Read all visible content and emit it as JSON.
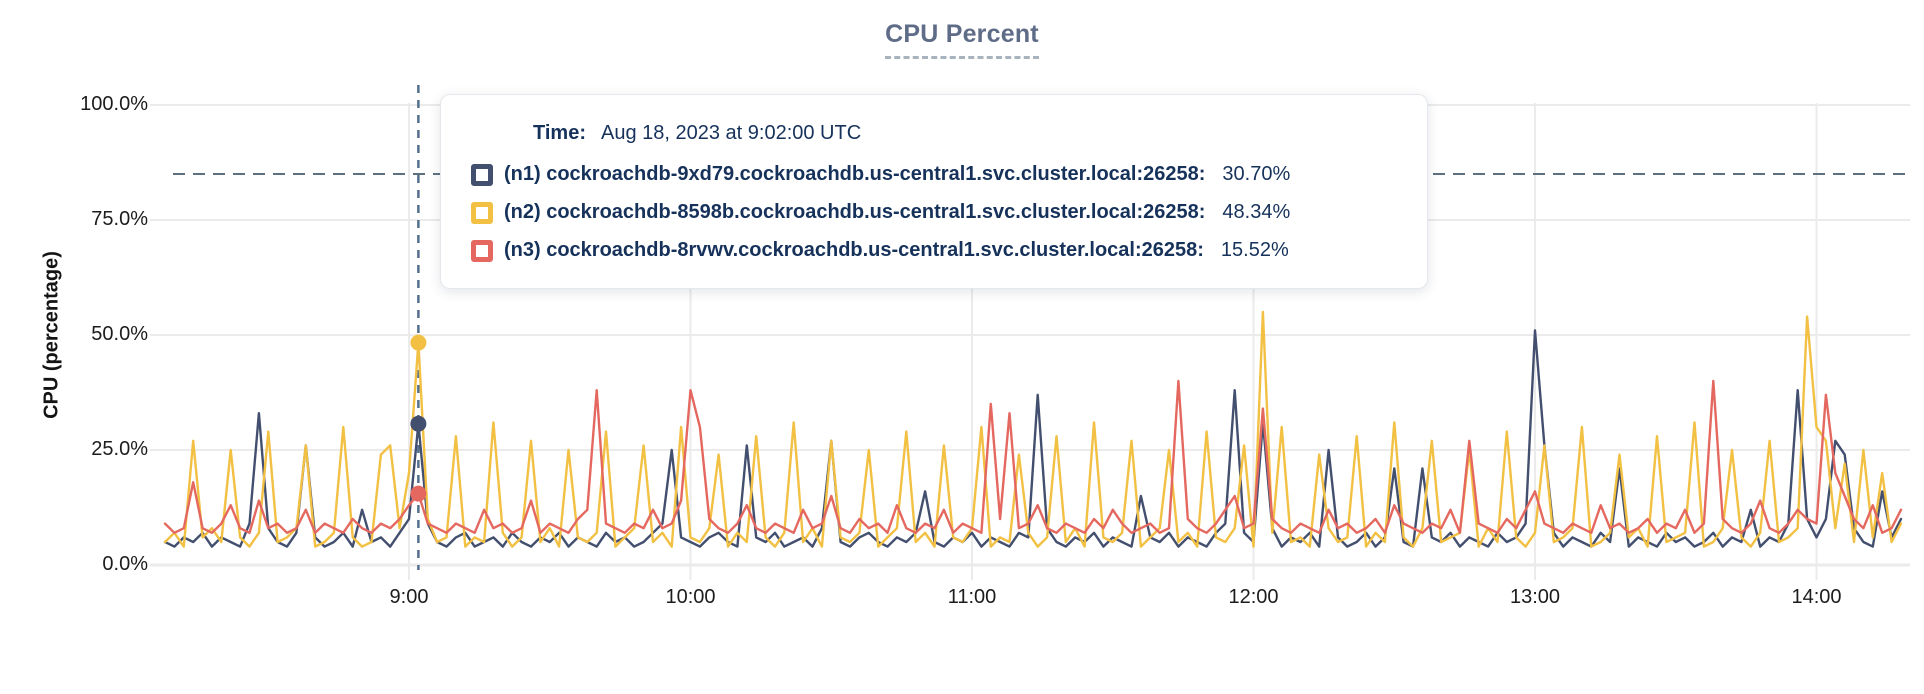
{
  "title": {
    "text": "CPU Percent"
  },
  "y_axis": {
    "label": "CPU (percentage)",
    "ticks": [
      "100.0%",
      "75.0%",
      "50.0%",
      "25.0%",
      "0.0%"
    ]
  },
  "x_axis": {
    "ticks": [
      "9:00",
      "10:00",
      "11:00",
      "12:00",
      "13:00",
      "14:00"
    ]
  },
  "tooltip": {
    "time_label": "Time:",
    "time_value": "Aug 18, 2023 at 9:02:00 UTC",
    "rows": [
      {
        "id": "n1",
        "label": "(n1) cockroachdb-9xd79.cockroachdb.us-central1.svc.cluster.local:26258:",
        "value": "30.70%",
        "color": "#434F6E"
      },
      {
        "id": "n2",
        "label": "(n2) cockroachdb-8598b.cockroachdb.us-central1.svc.cluster.local:26258:",
        "value": "48.34%",
        "color": "#F2C043"
      },
      {
        "id": "n3",
        "label": "(n3) cockroachdb-8rvwv.cockroachdb.us-central1.svc.cluster.local:26258:",
        "value": "15.52%",
        "color": "#E4685F"
      }
    ]
  },
  "colors": {
    "title": "#5F6C87",
    "tooltip_text": "#16325B",
    "grid": "#ebebeb",
    "dashed_guide": "#5c7080",
    "crosshair": "#54708c"
  },
  "chart_data": {
    "type": "line",
    "title": "CPU Percent",
    "xlabel": "",
    "ylabel": "CPU (percentage)",
    "ylim": [
      0,
      100
    ],
    "grid": true,
    "legend_position": "none (hover tooltip)",
    "x_start": "8:08",
    "x_end": "14:18",
    "interval_minutes": 2,
    "x_ticks": [
      "9:00",
      "10:00",
      "11:00",
      "12:00",
      "13:00",
      "14:00"
    ],
    "threshold_pct": 85,
    "hover": {
      "time": "9:02",
      "index": 27
    },
    "series": [
      {
        "id": "n1",
        "name": "(n1) cockroachdb-9xd79.cockroachdb.us-central1.svc.cluster.local:26258",
        "color": "#434F6E",
        "hover_value_pct": 30.7,
        "values": [
          5,
          4,
          6,
          5,
          7,
          4,
          6,
          5,
          4,
          9,
          33,
          8,
          5,
          4,
          7,
          26,
          6,
          4,
          5,
          7,
          4,
          12,
          5,
          6,
          4,
          7,
          10,
          30.7,
          9,
          5,
          4,
          6,
          7,
          4,
          5,
          6,
          4,
          7,
          5,
          4,
          6,
          5,
          7,
          4,
          6,
          5,
          4,
          7,
          5,
          6,
          4,
          5,
          7,
          9,
          25,
          6,
          5,
          4,
          6,
          7,
          5,
          4,
          26,
          6,
          5,
          7,
          4,
          5,
          6,
          4,
          8,
          27,
          5,
          4,
          6,
          7,
          5,
          4,
          6,
          5,
          7,
          16,
          5,
          4,
          6,
          5,
          7,
          4,
          6,
          5,
          4,
          7,
          6,
          37,
          8,
          5,
          4,
          6,
          5,
          7,
          4,
          6,
          5,
          4,
          15,
          6,
          5,
          7,
          4,
          6,
          5,
          4,
          7,
          9,
          38,
          7,
          5,
          31,
          8,
          4,
          6,
          5,
          7,
          4,
          25,
          6,
          4,
          5,
          7,
          4,
          6,
          21,
          5,
          4,
          21,
          6,
          5,
          7,
          4,
          6,
          5,
          4,
          7,
          5,
          6,
          9,
          51,
          26,
          7,
          4,
          6,
          5,
          4,
          7,
          5,
          21,
          4,
          6,
          5,
          4,
          7,
          5,
          6,
          4,
          5,
          7,
          4,
          6,
          5,
          12,
          4,
          6,
          5,
          9,
          38,
          10,
          6,
          10,
          27,
          24,
          8,
          5,
          4,
          16,
          6,
          10
        ]
      },
      {
        "id": "n2",
        "name": "(n2) cockroachdb-8598b.cockroachdb.us-central1.svc.cluster.local:26258",
        "color": "#F2C043",
        "hover_value_pct": 48.34,
        "values": [
          5,
          7,
          4,
          27,
          6,
          8,
          5,
          25,
          6,
          4,
          7,
          29,
          5,
          6,
          8,
          26,
          4,
          5,
          7,
          30,
          6,
          4,
          5,
          24,
          26,
          8,
          20,
          48.34,
          10,
          5,
          6,
          28,
          4,
          6,
          5,
          31,
          7,
          4,
          6,
          27,
          5,
          8,
          4,
          25,
          6,
          5,
          7,
          29,
          4,
          6,
          8,
          26,
          5,
          7,
          4,
          30,
          6,
          5,
          8,
          24,
          4,
          7,
          5,
          28,
          6,
          4,
          7,
          31,
          5,
          8,
          4,
          27,
          6,
          5,
          7,
          25,
          4,
          6,
          8,
          29,
          5,
          7,
          4,
          26,
          6,
          5,
          8,
          30,
          4,
          6,
          5,
          24,
          7,
          4,
          6,
          28,
          5,
          8,
          4,
          31,
          6,
          5,
          7,
          27,
          4,
          6,
          8,
          25,
          5,
          7,
          4,
          29,
          6,
          5,
          8,
          26,
          4,
          55,
          7,
          30,
          5,
          6,
          4,
          24,
          8,
          5,
          6,
          28,
          4,
          7,
          5,
          31,
          6,
          4,
          8,
          27,
          5,
          6,
          7,
          25,
          4,
          8,
          5,
          29,
          6,
          4,
          7,
          26,
          5,
          6,
          8,
          30,
          4,
          5,
          7,
          24,
          6,
          8,
          4,
          28,
          5,
          6,
          7,
          31,
          4,
          5,
          8,
          25,
          6,
          4,
          7,
          27,
          5,
          6,
          8,
          54,
          30,
          27,
          8,
          22,
          5,
          25,
          6,
          20,
          5,
          9
        ]
      },
      {
        "id": "n3",
        "name": "(n3) cockroachdb-8rvwv.cockroachdb.us-central1.svc.cluster.local:26258",
        "color": "#E4685F",
        "hover_value_pct": 15.52,
        "values": [
          9,
          7,
          8,
          18,
          8,
          7,
          9,
          13,
          8,
          7,
          14,
          8,
          9,
          7,
          8,
          12,
          7,
          9,
          8,
          7,
          10,
          8,
          7,
          9,
          8,
          10,
          13,
          15.52,
          9,
          8,
          7,
          9,
          8,
          7,
          12,
          8,
          9,
          7,
          8,
          14,
          7,
          9,
          8,
          7,
          10,
          12,
          38,
          9,
          8,
          7,
          9,
          8,
          12,
          8,
          9,
          14,
          38,
          30,
          10,
          8,
          7,
          9,
          13,
          8,
          7,
          9,
          8,
          7,
          12,
          8,
          9,
          15,
          8,
          7,
          10,
          8,
          9,
          7,
          13,
          8,
          7,
          9,
          8,
          12,
          7,
          9,
          8,
          7,
          35,
          10,
          33,
          8,
          9,
          13,
          8,
          7,
          9,
          8,
          7,
          10,
          8,
          12,
          9,
          7,
          8,
          9,
          7,
          8,
          40,
          10,
          8,
          7,
          9,
          12,
          15,
          8,
          9,
          34,
          10,
          8,
          7,
          9,
          8,
          7,
          12,
          8,
          9,
          7,
          8,
          10,
          7,
          13,
          9,
          8,
          7,
          9,
          8,
          12,
          7,
          27,
          9,
          8,
          7,
          10,
          8,
          12,
          16,
          9,
          8,
          7,
          9,
          8,
          7,
          13,
          8,
          9,
          7,
          8,
          10,
          7,
          9,
          8,
          12,
          7,
          9,
          40,
          10,
          8,
          7,
          9,
          14,
          8,
          7,
          9,
          12,
          10,
          9,
          37,
          20,
          15,
          10,
          8,
          13,
          7,
          8,
          12
        ]
      }
    ]
  }
}
